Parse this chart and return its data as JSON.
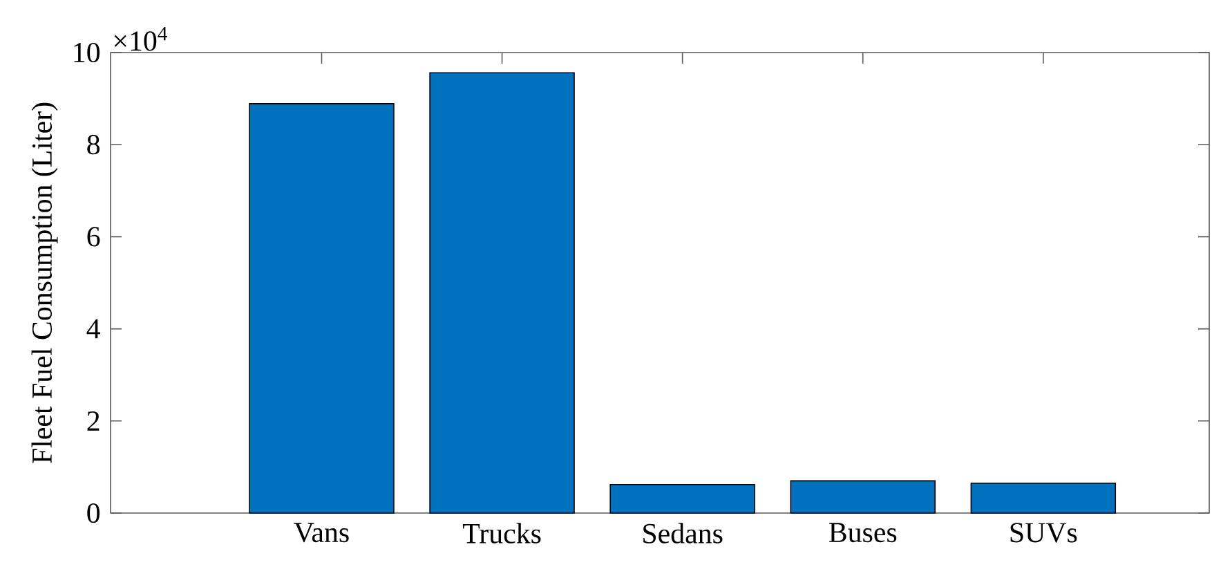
{
  "chart_data": {
    "type": "bar",
    "ylabel": "Fleet Fuel Consumption (Liter)",
    "categories": [
      "Vans",
      "Trucks",
      "Sedans",
      "Buses",
      "SUVs"
    ],
    "values": [
      8.89,
      9.56,
      0.62,
      0.7,
      0.65
    ],
    "color": "#0072bd",
    "ylim": [
      0,
      10
    ],
    "yticks": [
      0,
      2,
      4,
      6,
      8,
      10
    ],
    "annotations": [
      "×10$^{4}$"
    ]
  }
}
